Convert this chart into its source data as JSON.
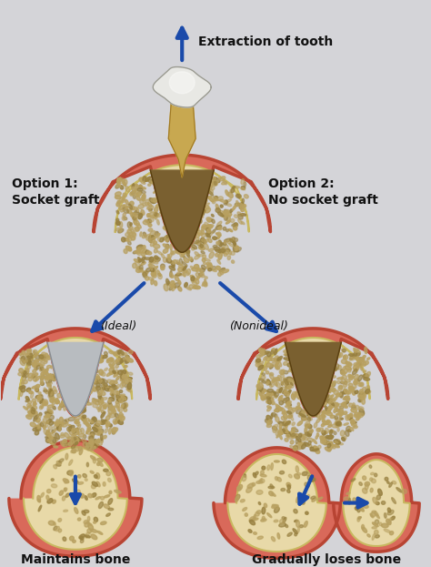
{
  "bg_color": "#d4d4d8",
  "arrow_color": "#1a4aaa",
  "text_color": "#111111",
  "labels": {
    "extraction": "Extraction of tooth",
    "option1": "Option 1:\nSocket graft",
    "option2": "Option 2:\nNo socket graft",
    "ideal": "(Ideal)",
    "nonideal": "(Nonideal)",
    "maintains": "Maintains bone",
    "loses": "Gradually loses bone"
  },
  "gum_color": "#d9695a",
  "gum_edge_color": "#b84433",
  "gum_light": "#e8907e",
  "bone_color": "#e8d9a8",
  "bone_edge_color": "#c8b860",
  "bone_light": "#f0e8c0",
  "socket_color": "#7a6030",
  "socket_edge": "#5a4010",
  "graft_color": "#b8bcc0",
  "graft_edge": "#888c90",
  "tooth_crown_light": "#e8e8e8",
  "tooth_crown_dark": "#b0b8b0",
  "tooth_root_color": "#c8a850",
  "tooth_root_dark": "#a07820",
  "dot_color": "#b8a060",
  "dot_color2": "#988040"
}
